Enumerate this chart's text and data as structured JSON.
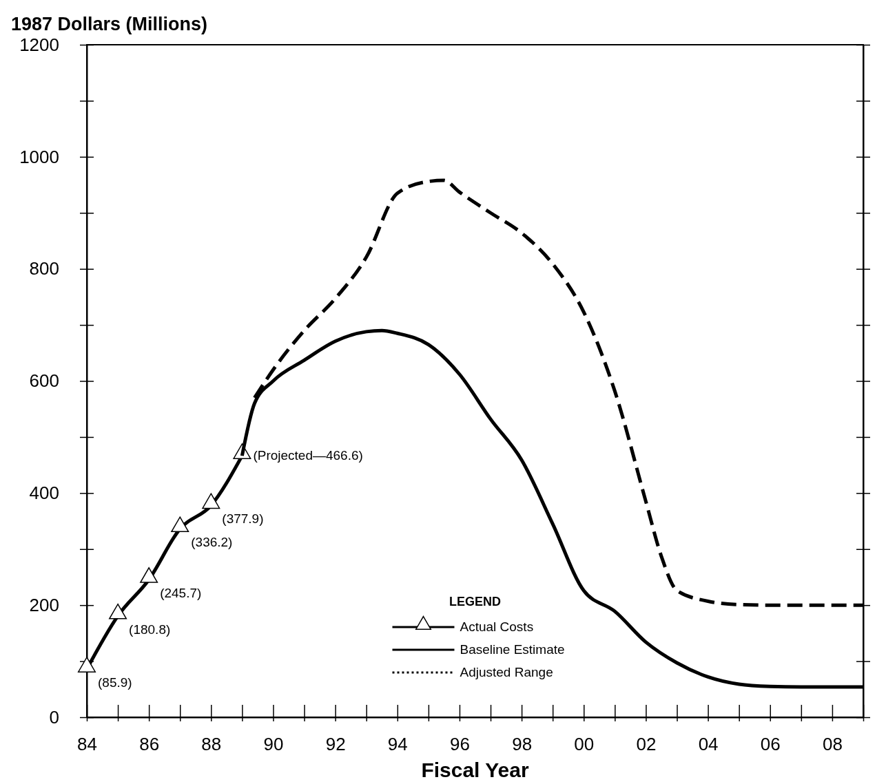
{
  "chart_data": {
    "type": "line",
    "ylabel": "1987 Dollars (Millions)",
    "xlabel": "Fiscal Year",
    "legend_title": "LEGEND",
    "legend": "bottom",
    "grid": false,
    "xlim": [
      1984,
      2009
    ],
    "xticks": [
      {
        "value": 1984,
        "label": "84"
      },
      {
        "value": 1985,
        "label": null
      },
      {
        "value": 1986,
        "label": "86"
      },
      {
        "value": 1987,
        "label": null
      },
      {
        "value": 1988,
        "label": "88"
      },
      {
        "value": 1989,
        "label": null
      },
      {
        "value": 1990,
        "label": "90"
      },
      {
        "value": 1991,
        "label": null
      },
      {
        "value": 1992,
        "label": "92"
      },
      {
        "value": 1993,
        "label": null
      },
      {
        "value": 1994,
        "label": "94"
      },
      {
        "value": 1995,
        "label": null
      },
      {
        "value": 1996,
        "label": "96"
      },
      {
        "value": 1997,
        "label": null
      },
      {
        "value": 1998,
        "label": "98"
      },
      {
        "value": 1999,
        "label": null
      },
      {
        "value": 2000,
        "label": "00"
      },
      {
        "value": 2001,
        "label": null
      },
      {
        "value": 2002,
        "label": "02"
      },
      {
        "value": 2003,
        "label": null
      },
      {
        "value": 2004,
        "label": "04"
      },
      {
        "value": 2005,
        "label": null
      },
      {
        "value": 2006,
        "label": "06"
      },
      {
        "value": 2007,
        "label": null
      },
      {
        "value": 2008,
        "label": "08"
      },
      {
        "value": 2009,
        "label": null
      }
    ],
    "ylim": [
      0,
      1200
    ],
    "yticks": [
      0,
      {
        "value": 100,
        "label": null
      },
      200,
      {
        "value": 300,
        "label": null
      },
      400,
      {
        "value": 500,
        "label": null
      },
      600,
      {
        "value": 700,
        "label": null
      },
      800,
      {
        "value": 900,
        "label": null
      },
      1000,
      {
        "value": 1100,
        "label": null
      },
      1200
    ],
    "series": [
      {
        "name": "Actual Costs",
        "color": "#000000",
        "marker": "triangle",
        "line_style": "solid",
        "x": [
          1984,
          1985,
          1986,
          1987,
          1988,
          1989
        ],
        "values": [
          85.9,
          180.8,
          245.7,
          336.2,
          377.9,
          466.6
        ],
        "value_labels": [
          "(85.9)",
          "(180.8)",
          "(245.7)",
          "(336.2)",
          "(377.9)",
          "(Projected—466.6)"
        ]
      },
      {
        "name": "Baseline Estimate",
        "color": "#000000",
        "marker": "none",
        "line_style": "solid",
        "x": [
          1989,
          1989.4,
          1990,
          1991,
          1992,
          1993,
          1993.5,
          1994,
          1995,
          1996,
          1997,
          1998,
          1999,
          2000,
          2001,
          2002,
          2003,
          2004,
          2005,
          2006,
          2007,
          2008,
          2009
        ],
        "values": [
          466.6,
          560,
          600,
          637,
          671,
          688,
          690,
          685,
          665,
          612,
          532,
          459,
          345,
          226,
          189,
          134,
          97,
          72,
          59,
          55,
          54,
          54,
          54
        ]
      },
      {
        "name": "Adjusted Range",
        "color": "#000000",
        "marker": "none",
        "line_style": "dashed",
        "x": [
          1989.4,
          1990,
          1991,
          1992,
          1993,
          1994,
          1995,
          1995.5,
          1996,
          1997,
          1998,
          1999,
          2000,
          2001,
          2002,
          2002.5,
          2003,
          2004,
          2005,
          2006,
          2007,
          2008,
          2009
        ],
        "values": [
          570,
          620,
          690,
          747,
          821,
          935,
          956,
          958,
          937,
          900,
          864,
          809,
          723,
          582,
          385,
          287,
          226,
          207,
          201,
          200,
          200,
          200,
          200
        ]
      }
    ]
  }
}
